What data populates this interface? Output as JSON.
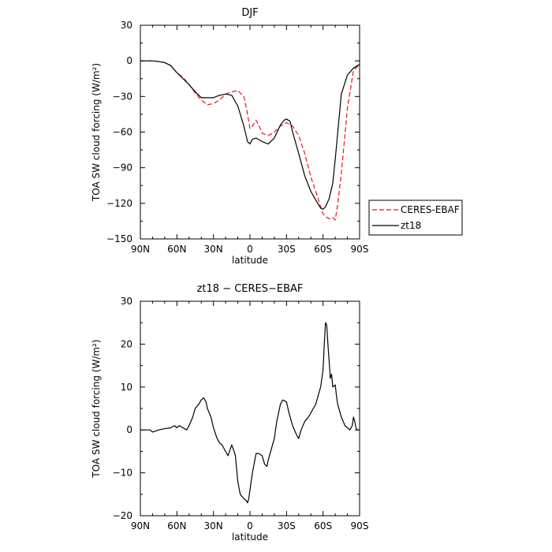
{
  "chart_data": [
    {
      "type": "line",
      "title": "DJF",
      "xlabel": "latitude",
      "ylabel": "TOA SW cloud forcing (W/m²)",
      "xlim": [
        -90,
        90
      ],
      "ylim": [
        -150,
        30
      ],
      "x_ticks": [
        -90,
        -60,
        -30,
        0,
        30,
        60,
        90
      ],
      "x_tick_labels": [
        "90N",
        "60N",
        "30N",
        "0",
        "30S",
        "60S",
        "90S"
      ],
      "y_ticks": [
        -150,
        -120,
        -90,
        -60,
        -30,
        0,
        30
      ],
      "y_tick_labels": [
        "−150",
        "−120",
        "−90",
        "−60",
        "−30",
        "0",
        "30"
      ],
      "legend": "outside-right",
      "series": [
        {
          "name": "CERES-EBAF",
          "color": "#e8141c",
          "dash": "dashed",
          "x": [
            -90,
            -80,
            -75,
            -70,
            -65,
            -60,
            -55,
            -50,
            -45,
            -40,
            -35,
            -30,
            -25,
            -20,
            -15,
            -10,
            -5,
            -2,
            0,
            2,
            5,
            8,
            10,
            15,
            20,
            25,
            30,
            35,
            40,
            45,
            50,
            55,
            58,
            60,
            62,
            65,
            68,
            70,
            72,
            75,
            80,
            85,
            90
          ],
          "y": [
            0,
            0,
            -0.5,
            -1.5,
            -4,
            -10,
            -14,
            -20,
            -27,
            -33,
            -37,
            -36,
            -33,
            -28,
            -26,
            -25,
            -30,
            -45,
            -57,
            -55,
            -50,
            -56,
            -61,
            -63,
            -60,
            -55,
            -52,
            -55,
            -63,
            -78,
            -98,
            -113,
            -123,
            -129,
            -131,
            -133,
            -132,
            -134,
            -121,
            -95,
            -40,
            -8,
            -3
          ]
        },
        {
          "name": "zt18",
          "color": "#000000",
          "dash": "solid",
          "x": [
            -90,
            -80,
            -75,
            -70,
            -65,
            -60,
            -55,
            -50,
            -45,
            -40,
            -35,
            -30,
            -25,
            -20,
            -15,
            -10,
            -5,
            -2,
            0,
            2,
            5,
            10,
            15,
            20,
            25,
            28,
            30,
            33,
            35,
            40,
            45,
            50,
            55,
            58,
            60,
            62,
            65,
            68,
            70,
            75,
            80,
            85,
            90
          ],
          "y": [
            0,
            0,
            -0.5,
            -1.5,
            -4,
            -10,
            -15,
            -20,
            -26,
            -31,
            -31,
            -31,
            -29,
            -28,
            -29,
            -38,
            -55,
            -68,
            -70,
            -66,
            -65,
            -68,
            -70,
            -65,
            -54,
            -50,
            -49,
            -51,
            -60,
            -78,
            -97,
            -110,
            -119,
            -124,
            -125,
            -123,
            -116,
            -103,
            -83,
            -28,
            -12,
            -6,
            -3
          ]
        }
      ]
    },
    {
      "type": "line",
      "title": "zt18 − CERES−EBAF",
      "xlabel": "latitude",
      "ylabel": "TOA SW cloud forcing (W/m²)",
      "xlim": [
        -90,
        90
      ],
      "ylim": [
        -20,
        30
      ],
      "x_ticks": [
        -90,
        -60,
        -30,
        0,
        30,
        60,
        90
      ],
      "x_tick_labels": [
        "90N",
        "60N",
        "30N",
        "0",
        "30S",
        "60S",
        "90S"
      ],
      "y_ticks": [
        -20,
        -10,
        0,
        10,
        20,
        30
      ],
      "y_tick_labels": [
        "−20",
        "−10",
        "0",
        "10",
        "20",
        "30"
      ],
      "series": [
        {
          "name": "",
          "color": "#000000",
          "dash": "solid",
          "x": [
            -90,
            -82,
            -80,
            -75,
            -70,
            -65,
            -62,
            -60,
            -58,
            -55,
            -52,
            -50,
            -47,
            -45,
            -42,
            -40,
            -38,
            -36,
            -35,
            -32,
            -30,
            -27,
            -25,
            -23,
            -20,
            -18,
            -15,
            -13,
            -12,
            -10,
            -8,
            -5,
            -3,
            -2,
            -1,
            0,
            1,
            2,
            4,
            5,
            7,
            10,
            12,
            14,
            15,
            17,
            20,
            22,
            25,
            27,
            30,
            32,
            35,
            38,
            40,
            42,
            45,
            48,
            50,
            52,
            54,
            56,
            58,
            60,
            61,
            62,
            63,
            64,
            65,
            66,
            67,
            68,
            70,
            71,
            72,
            75,
            78,
            80,
            82,
            84,
            85,
            86,
            87,
            88,
            90
          ],
          "y": [
            0,
            0,
            -0.5,
            0,
            0.3,
            0.5,
            1,
            0.5,
            1,
            0.5,
            0,
            1,
            3,
            5,
            6,
            7,
            7.5,
            6.5,
            5,
            3,
            0.5,
            -2,
            -3,
            -3.5,
            -5,
            -6,
            -3.5,
            -5,
            -6,
            -12,
            -15,
            -16,
            -16.5,
            -17,
            -16,
            -14,
            -12,
            -10,
            -7,
            -5.5,
            -5.5,
            -6,
            -8,
            -8.5,
            -7,
            -5,
            -2,
            2,
            6,
            7,
            6.5,
            4,
            1,
            -1,
            -2,
            0,
            2,
            3,
            4,
            5,
            6,
            8,
            10,
            14,
            20,
            25,
            24.5,
            20,
            16,
            12,
            13,
            10,
            10.5,
            8,
            6,
            3,
            1,
            0.5,
            0,
            1,
            3,
            2,
            0.5,
            0,
            0
          ]
        }
      ]
    }
  ]
}
